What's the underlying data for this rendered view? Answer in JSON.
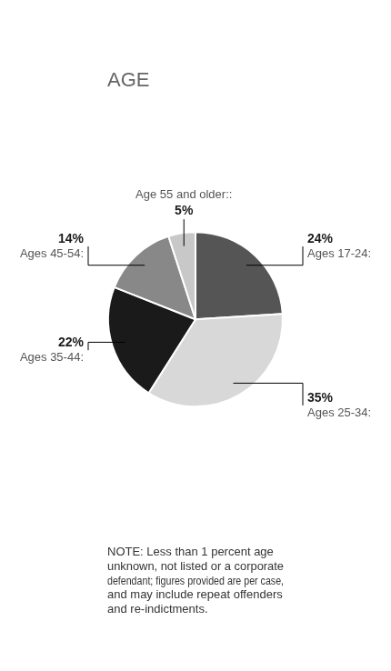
{
  "chart_data": {
    "type": "pie",
    "title": "AGE",
    "categories": [
      "Ages 17-24:",
      "Ages 25-34:",
      "Ages 35-44:",
      "Ages 45-54:",
      "Age 55 and older::"
    ],
    "values": [
      24,
      35,
      22,
      14,
      5
    ],
    "value_labels": [
      "24%",
      "35%",
      "22%",
      "14%",
      "5%"
    ],
    "colors": [
      "#555555",
      "#d8d8d8",
      "#1a1a1a",
      "#888888",
      "#c8c8c8"
    ],
    "data_labels": true,
    "annotations": [
      "NOTE: Less than 1 percent age",
      "unknown, not listed or a corporate",
      "defendant; figures provided are per case,",
      "and may include repeat offenders",
      "and re-indictments."
    ]
  }
}
